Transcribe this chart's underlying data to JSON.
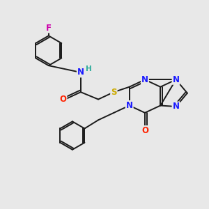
{
  "background_color": "#e8e8e8",
  "bond_color": "#1a1a1a",
  "atom_colors": {
    "N": "#1a1aff",
    "O": "#ff2200",
    "S": "#ccaa00",
    "F": "#cc00aa",
    "H": "#2aaa99",
    "C": "#1a1a1a"
  },
  "font_size": 8.5,
  "fig_size": [
    3.0,
    3.0
  ],
  "dpi": 100
}
